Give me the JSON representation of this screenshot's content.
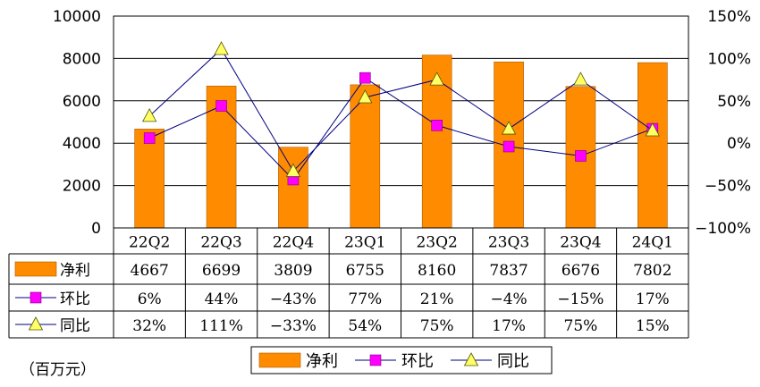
{
  "chart_data": {
    "type": "bar",
    "categories": [
      "22Q2",
      "22Q3",
      "22Q4",
      "23Q1",
      "23Q2",
      "23Q3",
      "23Q4",
      "24Q1"
    ],
    "series": [
      {
        "name": "净利",
        "kind": "bar",
        "axis": "left",
        "color": "#FF8C00",
        "values": [
          4667,
          6699,
          3809,
          6755,
          8160,
          7837,
          6676,
          7802
        ],
        "labels": [
          "4667",
          "6699",
          "3809",
          "6755",
          "8160",
          "7837",
          "6676",
          "7802"
        ]
      },
      {
        "name": "环比",
        "kind": "line",
        "axis": "right",
        "marker": "square",
        "color": "#FF00FF",
        "values": [
          6,
          44,
          -43,
          77,
          21,
          -4,
          -15,
          17
        ],
        "labels": [
          "6%",
          "44%",
          "−43%",
          "77%",
          "21%",
          "−4%",
          "−15%",
          "17%"
        ]
      },
      {
        "name": "同比",
        "kind": "line",
        "axis": "right",
        "marker": "triangle",
        "color": "#FFFF66",
        "values": [
          32,
          111,
          -33,
          54,
          75,
          17,
          75,
          15
        ],
        "labels": [
          "32%",
          "111%",
          "−33%",
          "54%",
          "75%",
          "17%",
          "75%",
          "15%"
        ]
      }
    ],
    "y_left": {
      "range": [
        0,
        10000
      ],
      "ticks": [
        "0",
        "2000",
        "4000",
        "6000",
        "8000",
        "10000"
      ]
    },
    "y_right": {
      "range": [
        -100,
        150
      ],
      "ticks": [
        "−100%",
        "−50%",
        "0%",
        "50%",
        "100%",
        "150%"
      ]
    },
    "grid": true,
    "legend": "bottom",
    "unit_note": "（百万元）",
    "line_color": "#000080"
  }
}
